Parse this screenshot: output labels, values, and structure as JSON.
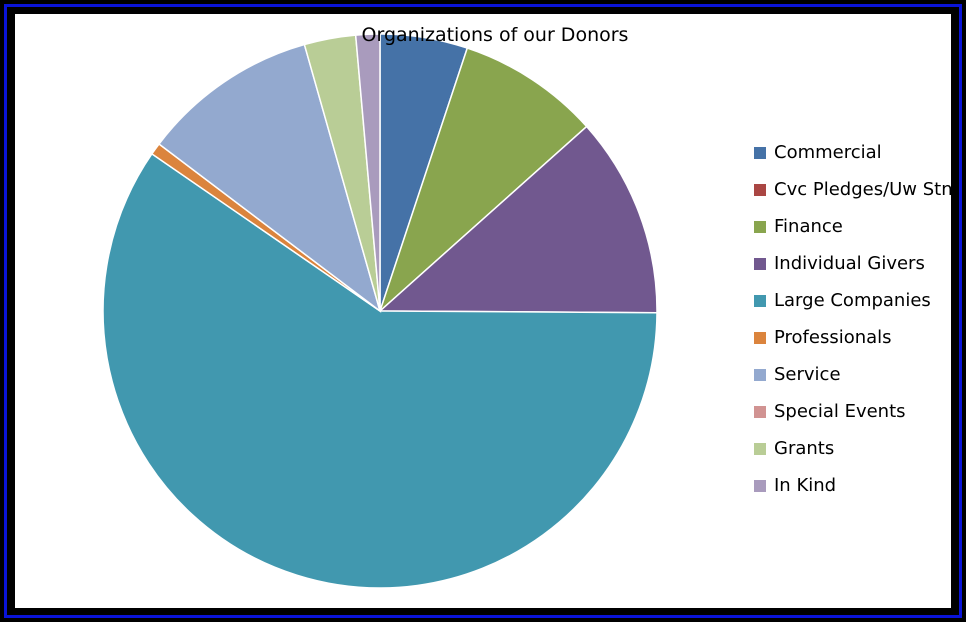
{
  "chart_data": {
    "type": "pie",
    "title": "Organizations of our Donors",
    "legend_position": "right",
    "slices": [
      {
        "label": "Commercial",
        "value": 5.1,
        "color": "#4572a7"
      },
      {
        "label": "Cvc Pledges/Uw Stn",
        "value": 0.0,
        "color": "#aa4643"
      },
      {
        "label": "Finance",
        "value": 8.3,
        "color": "#89a54e"
      },
      {
        "label": "Individual Givers",
        "value": 11.7,
        "color": "#71588f"
      },
      {
        "label": "Large Companies",
        "value": 59.5,
        "color": "#4198af"
      },
      {
        "label": "Professionals",
        "value": 0.7,
        "color": "#db843d"
      },
      {
        "label": "Service",
        "value": 10.3,
        "color": "#93a9cf"
      },
      {
        "label": "Special Events",
        "value": 0.0,
        "color": "#d19392"
      },
      {
        "label": "Grants",
        "value": 3.0,
        "color": "#b9cd96"
      },
      {
        "label": "In Kind",
        "value": 1.4,
        "color": "#a99bbd"
      }
    ]
  }
}
